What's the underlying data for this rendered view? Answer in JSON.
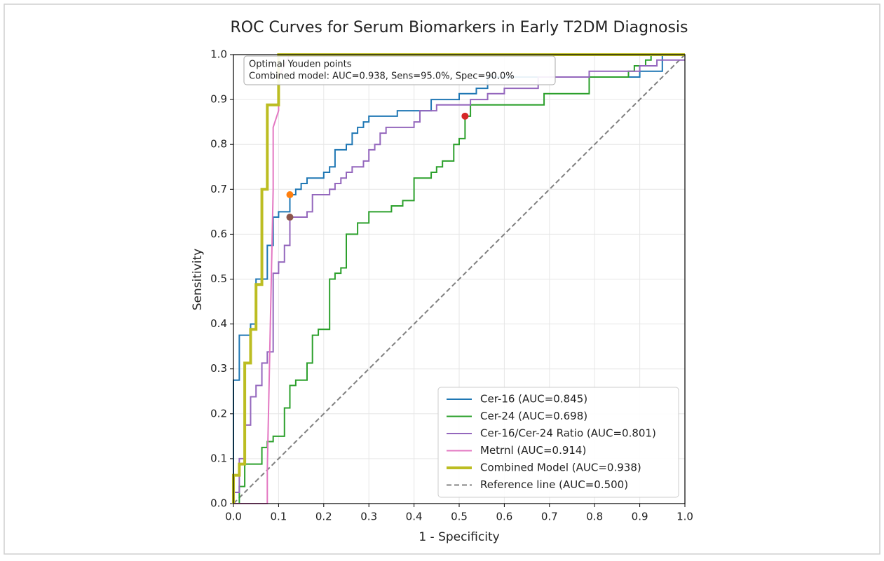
{
  "chart_data": {
    "type": "line",
    "title": "ROC Curves for Serum Biomarkers in Early T2DM Diagnosis",
    "xlabel": "1 - Specificity",
    "ylabel": "Sensitivity",
    "xlim": [
      0,
      1
    ],
    "ylim": [
      0,
      1
    ],
    "xticks": [
      {
        "value": 0,
        "label": "0.0"
      },
      0.1,
      0.2,
      0.3,
      0.4,
      0.5,
      0.6,
      0.7,
      0.8,
      0.9,
      {
        "value": 1,
        "label": "1.0"
      }
    ],
    "yticks": [
      {
        "value": 0,
        "label": "0.0"
      },
      0.1,
      0.2,
      0.3,
      0.4,
      0.5,
      0.6,
      0.7,
      0.8,
      0.9,
      {
        "value": 1,
        "label": "1.0"
      }
    ],
    "grid": true,
    "legend": "lower right",
    "annotation": [
      "Optimal Youden points",
      "Combined model: AUC=0.938, Sens=95.0%, Spec=90.0%"
    ],
    "series": [
      {
        "name": "Cer-16 (AUC=0.845)",
        "color": "#1f77b4",
        "linewidth": 2,
        "x": [
          0,
          0,
          0.013,
          0.013,
          0.038,
          0.038,
          0.05,
          0.05,
          0.075,
          0.075,
          0.088,
          0.088,
          0.1,
          0.1,
          0.125,
          0.125,
          0.138,
          0.138,
          0.15,
          0.15,
          0.163,
          0.163,
          0.2,
          0.2,
          0.213,
          0.213,
          0.225,
          0.225,
          0.25,
          0.25,
          0.263,
          0.263,
          0.275,
          0.275,
          0.288,
          0.288,
          0.3,
          0.3,
          0.363,
          0.363,
          0.438,
          0.438,
          0.5,
          0.5,
          0.538,
          0.538,
          0.563,
          0.563,
          0.9,
          0.9,
          0.95,
          0.95,
          1
        ],
        "values": [
          0,
          0.275,
          0.275,
          0.375,
          0.375,
          0.4,
          0.4,
          0.5,
          0.5,
          0.575,
          0.575,
          0.638,
          0.638,
          0.65,
          0.65,
          0.688,
          0.688,
          0.7,
          0.7,
          0.713,
          0.713,
          0.725,
          0.725,
          0.738,
          0.738,
          0.75,
          0.75,
          0.788,
          0.788,
          0.8,
          0.8,
          0.825,
          0.825,
          0.838,
          0.838,
          0.85,
          0.85,
          0.863,
          0.863,
          0.875,
          0.875,
          0.9,
          0.9,
          0.913,
          0.913,
          0.925,
          0.925,
          0.95,
          0.95,
          0.963,
          0.963,
          1,
          1
        ]
      },
      {
        "name": "Cer-24 (AUC=0.698)",
        "color": "#2ca02c",
        "linewidth": 2,
        "x": [
          0,
          0.013,
          0.013,
          0.025,
          0.025,
          0.063,
          0.063,
          0.075,
          0.075,
          0.088,
          0.088,
          0.113,
          0.113,
          0.125,
          0.125,
          0.138,
          0.138,
          0.163,
          0.163,
          0.175,
          0.175,
          0.188,
          0.188,
          0.213,
          0.213,
          0.225,
          0.225,
          0.238,
          0.238,
          0.25,
          0.25,
          0.275,
          0.275,
          0.3,
          0.3,
          0.35,
          0.35,
          0.375,
          0.375,
          0.4,
          0.4,
          0.438,
          0.438,
          0.45,
          0.45,
          0.463,
          0.463,
          0.488,
          0.488,
          0.5,
          0.5,
          0.513,
          0.513,
          0.525,
          0.525,
          0.688,
          0.688,
          0.788,
          0.788,
          0.875,
          0.875,
          0.888,
          0.888,
          0.913,
          0.913,
          0.925,
          0.925,
          1
        ],
        "values": [
          0,
          0,
          0.038,
          0.038,
          0.088,
          0.088,
          0.125,
          0.125,
          0.138,
          0.138,
          0.15,
          0.15,
          0.213,
          0.213,
          0.263,
          0.263,
          0.275,
          0.275,
          0.313,
          0.313,
          0.375,
          0.375,
          0.388,
          0.388,
          0.5,
          0.5,
          0.513,
          0.513,
          0.525,
          0.525,
          0.6,
          0.6,
          0.625,
          0.625,
          0.65,
          0.65,
          0.663,
          0.663,
          0.675,
          0.675,
          0.725,
          0.725,
          0.738,
          0.738,
          0.75,
          0.75,
          0.763,
          0.763,
          0.8,
          0.8,
          0.813,
          0.813,
          0.863,
          0.863,
          0.888,
          0.888,
          0.913,
          0.913,
          0.95,
          0.95,
          0.963,
          0.963,
          0.975,
          0.975,
          0.988,
          0.988,
          1,
          1
        ]
      },
      {
        "name": "Cer-16/Cer-24 Ratio (AUC=0.801)",
        "color": "#9467bd",
        "linewidth": 2,
        "x": [
          0,
          0,
          0.013,
          0.013,
          0.025,
          0.025,
          0.038,
          0.038,
          0.05,
          0.05,
          0.063,
          0.063,
          0.075,
          0.075,
          0.088,
          0.088,
          0.1,
          0.1,
          0.113,
          0.113,
          0.125,
          0.125,
          0.163,
          0.163,
          0.175,
          0.175,
          0.213,
          0.213,
          0.225,
          0.225,
          0.238,
          0.238,
          0.25,
          0.25,
          0.263,
          0.263,
          0.288,
          0.288,
          0.3,
          0.3,
          0.313,
          0.313,
          0.325,
          0.325,
          0.338,
          0.338,
          0.4,
          0.4,
          0.413,
          0.413,
          0.45,
          0.45,
          0.525,
          0.525,
          0.563,
          0.563,
          0.6,
          0.6,
          0.675,
          0.675,
          0.788,
          0.788,
          0.9,
          0.9,
          0.938,
          0.938,
          1
        ],
        "values": [
          0,
          0.025,
          0.025,
          0.1,
          0.1,
          0.175,
          0.175,
          0.238,
          0.238,
          0.263,
          0.263,
          0.313,
          0.313,
          0.338,
          0.338,
          0.513,
          0.513,
          0.538,
          0.538,
          0.575,
          0.575,
          0.638,
          0.638,
          0.65,
          0.65,
          0.688,
          0.688,
          0.7,
          0.7,
          0.713,
          0.713,
          0.725,
          0.725,
          0.738,
          0.738,
          0.75,
          0.75,
          0.763,
          0.763,
          0.788,
          0.788,
          0.8,
          0.8,
          0.825,
          0.825,
          0.838,
          0.838,
          0.85,
          0.85,
          0.875,
          0.875,
          0.888,
          0.888,
          0.9,
          0.9,
          0.913,
          0.913,
          0.925,
          0.925,
          0.95,
          0.95,
          0.963,
          0.963,
          0.975,
          0.975,
          0.988,
          0.988
        ]
      },
      {
        "name": "Metrnl (AUC=0.914)",
        "color": "#e377c2",
        "linewidth": 2,
        "x": [
          0,
          0.075,
          0.075,
          0.088,
          0.088,
          0.1,
          0.1,
          0.125,
          0.275,
          1
        ],
        "values": [
          0,
          0,
          0.075,
          0.7,
          0.838,
          0.875,
          0.95,
          1,
          1,
          1
        ]
      },
      {
        "name": "Combined Model (AUC=0.938)",
        "color": "#bcbd22",
        "linewidth": 4,
        "x": [
          0,
          0,
          0.013,
          0.013,
          0.025,
          0.025,
          0.038,
          0.038,
          0.05,
          0.05,
          0.063,
          0.063,
          0.075,
          0.075,
          0.1,
          0.1,
          1
        ],
        "values": [
          0,
          0.063,
          0.063,
          0.088,
          0.088,
          0.313,
          0.313,
          0.388,
          0.388,
          0.488,
          0.488,
          0.7,
          0.7,
          0.888,
          0.888,
          1,
          1
        ]
      },
      {
        "name": "Reference line (AUC=0.500)",
        "color": "#808080",
        "linewidth": 2,
        "dashed": true,
        "x": [
          0,
          1
        ],
        "values": [
          0,
          1
        ]
      }
    ],
    "youden_points": {
      "x": [
        0.125,
        0.125,
        0.513
      ],
      "values": [
        0.688,
        0.638,
        0.863
      ],
      "colors": [
        "#ff7f0e",
        "#8c564b",
        "#d62728"
      ]
    }
  }
}
